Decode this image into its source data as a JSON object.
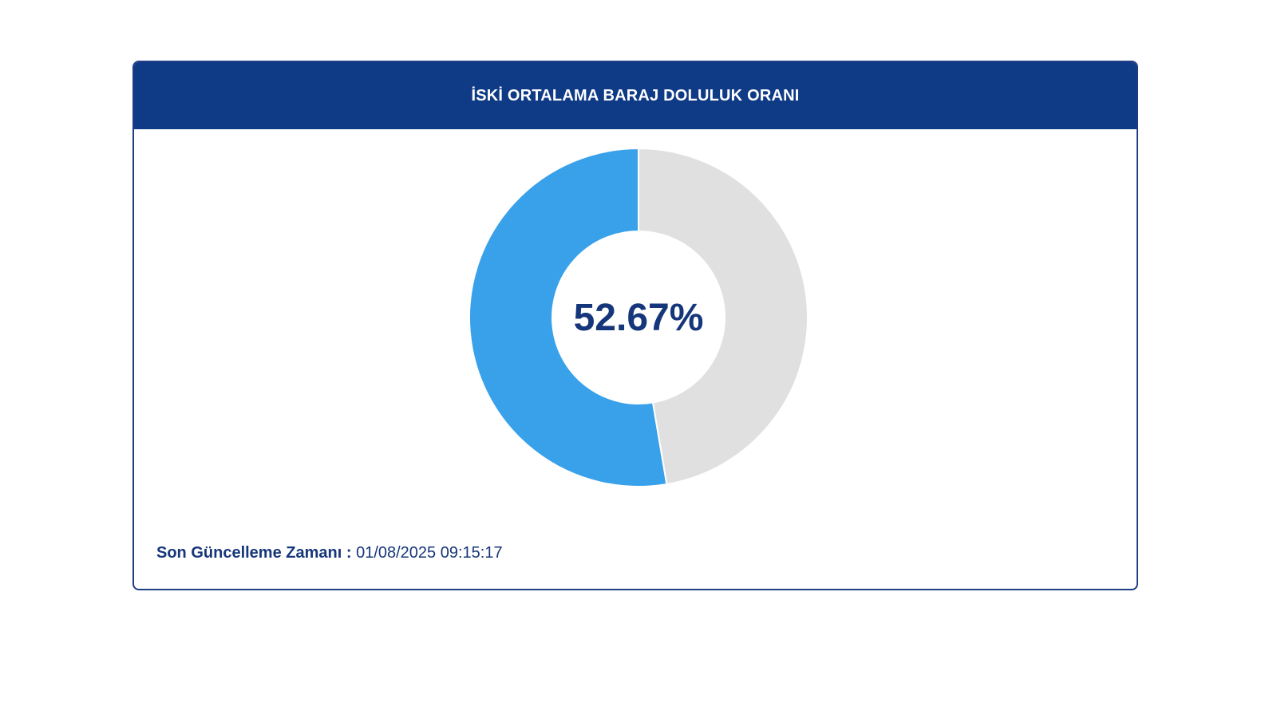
{
  "card": {
    "title": "İSKİ ORTALAMA BARAJ DOLULUK ORANI"
  },
  "center": {
    "value_text": "52.67%"
  },
  "footer": {
    "label": "Son Güncelleme Zamanı :",
    "value": "01/08/2025 09:15:17"
  },
  "colors": {
    "header_bg": "#0f3a86",
    "filled": "#38a1ea",
    "empty": "#e0e0e0",
    "text_dark": "#15367a"
  },
  "chart_data": {
    "type": "pie",
    "variant": "donut",
    "slices": [
      {
        "value": 52.67,
        "color": "#38a1ea"
      },
      {
        "value": 47.33,
        "color": "#e0e0e0"
      }
    ]
  }
}
